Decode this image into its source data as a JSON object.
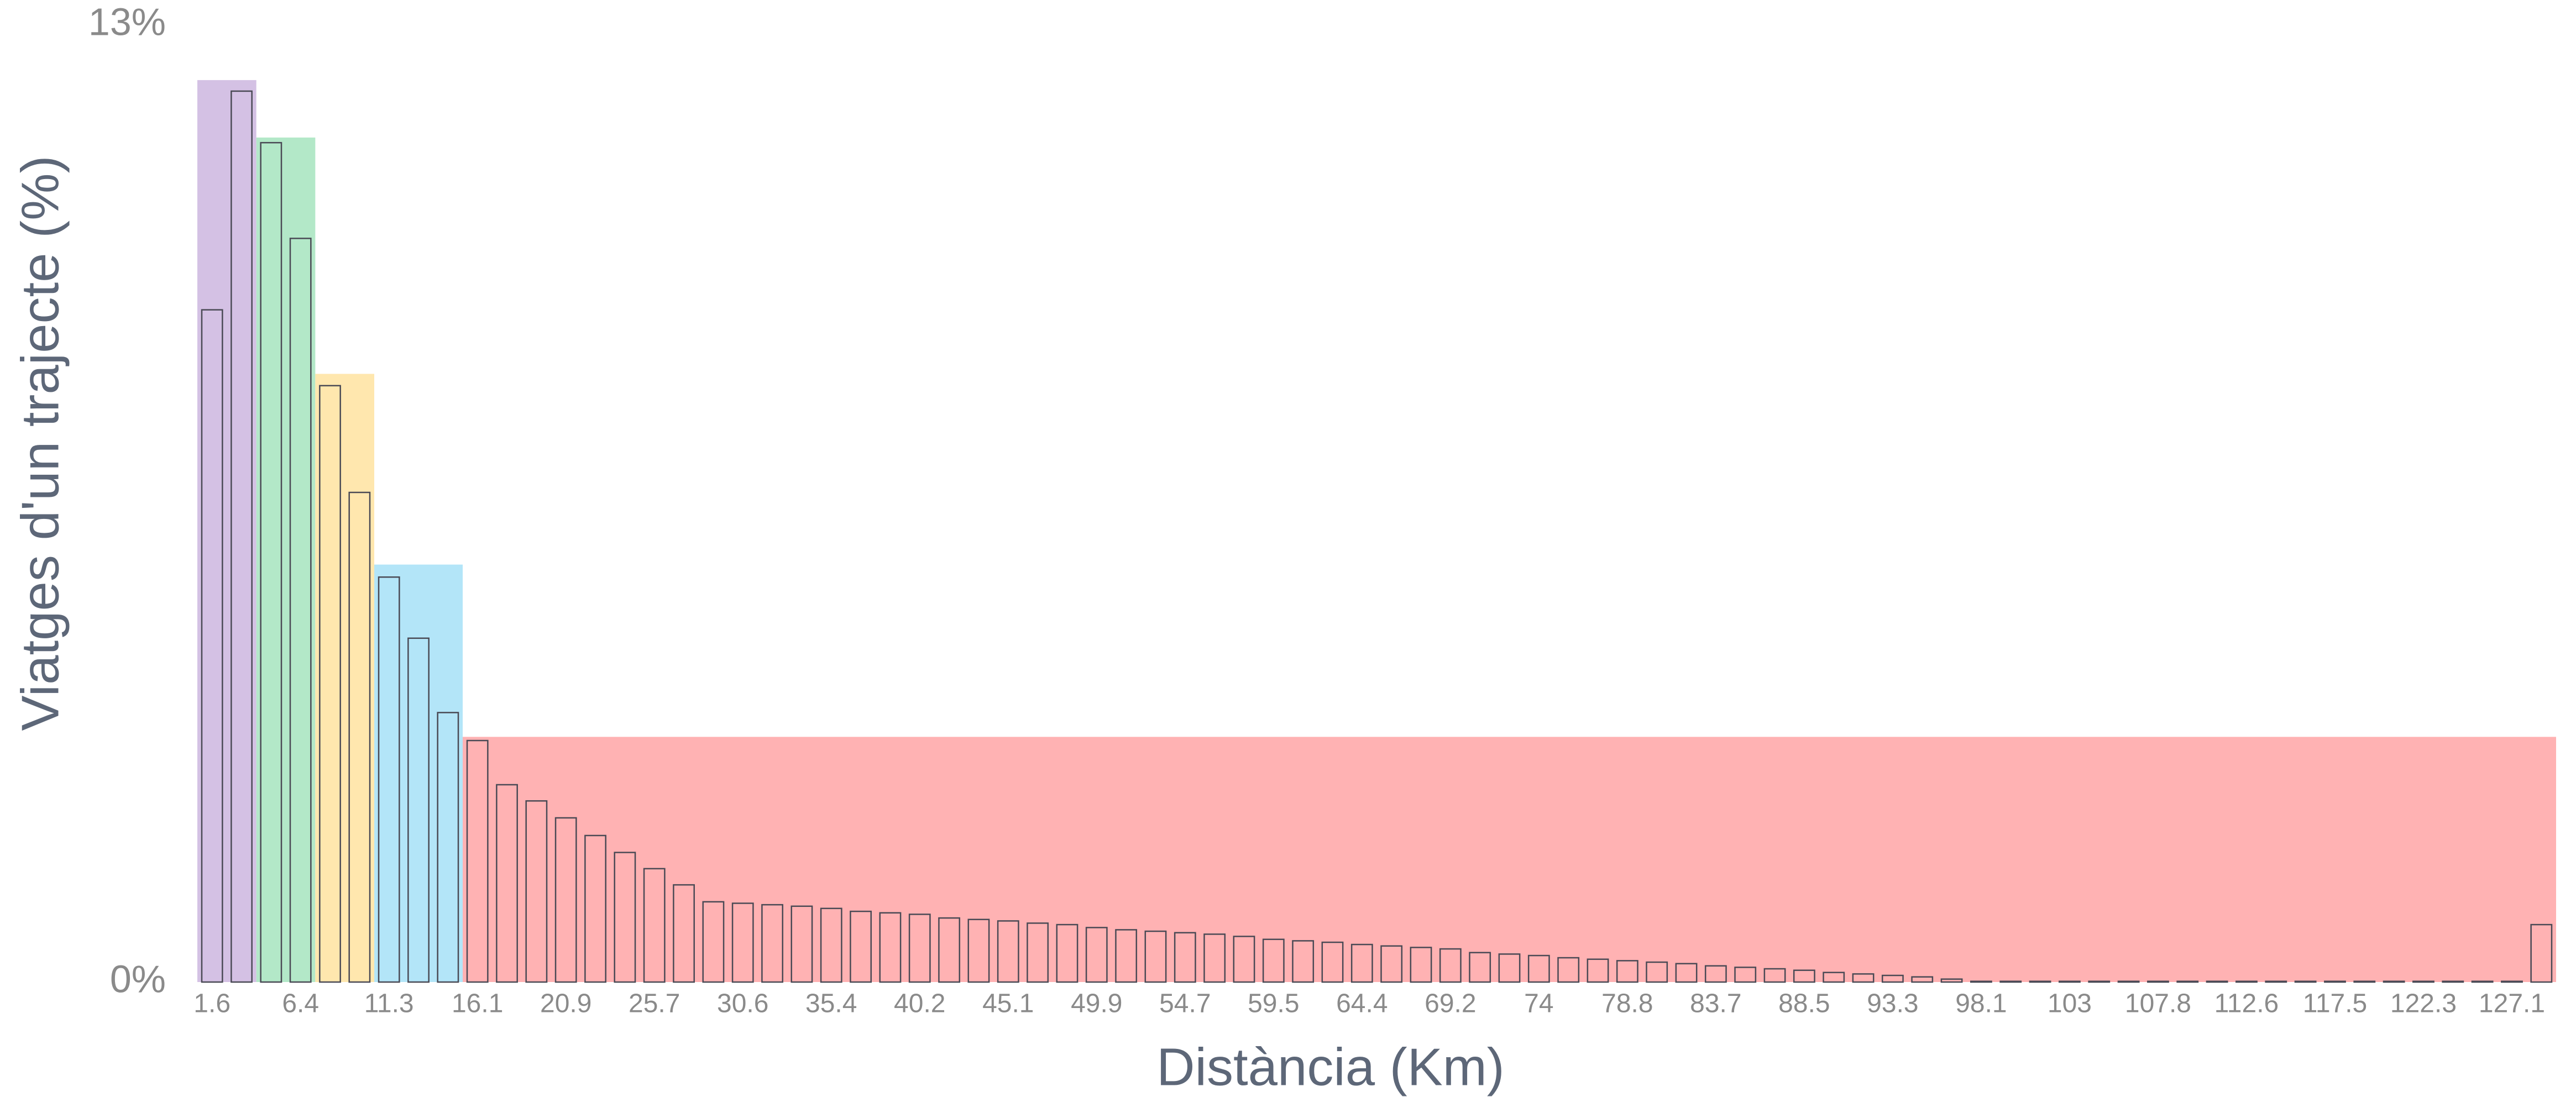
{
  "chart_data": {
    "type": "bar",
    "x_label": "Distància (Km)",
    "y_label": "Viatges d'un trajecte (%)",
    "categories": [
      "1.6",
      null,
      null,
      "6.4",
      null,
      null,
      "11.3",
      null,
      null,
      "16.1",
      null,
      null,
      "20.9",
      null,
      null,
      "25.7",
      null,
      null,
      "30.6",
      null,
      null,
      "35.4",
      null,
      null,
      "40.2",
      null,
      null,
      "45.1",
      null,
      null,
      "49.9",
      null,
      null,
      "54.7",
      null,
      null,
      "59.5",
      null,
      null,
      "64.4",
      null,
      null,
      "69.2",
      null,
      null,
      "74",
      null,
      null,
      "78.8",
      null,
      null,
      "83.7",
      null,
      null,
      "88.5",
      null,
      null,
      "93.3",
      null,
      null,
      "98.1",
      null,
      null,
      "103",
      null,
      null,
      "107.8",
      null,
      null,
      "112.6",
      null,
      null,
      "117.5",
      null,
      null,
      "122.3",
      null,
      null,
      "127.1",
      null
    ],
    "values": [
      9.13,
      12.1,
      11.4,
      10.1,
      8.1,
      6.65,
      5.5,
      4.67,
      3.66,
      3.28,
      2.68,
      2.46,
      2.23,
      1.99,
      1.76,
      1.54,
      1.32,
      1.09,
      1.07,
      1.05,
      1.03,
      1.0,
      0.96,
      0.94,
      0.92,
      0.87,
      0.85,
      0.83,
      0.8,
      0.78,
      0.74,
      0.71,
      0.69,
      0.67,
      0.65,
      0.62,
      0.58,
      0.56,
      0.54,
      0.51,
      0.49,
      0.47,
      0.45,
      0.4,
      0.38,
      0.36,
      0.33,
      0.31,
      0.29,
      0.27,
      0.25,
      0.22,
      0.2,
      0.18,
      0.16,
      0.13,
      0.11,
      0.09,
      0.07,
      0.04,
      0.01,
      0.01,
      0.01,
      0.01,
      0.01,
      0.01,
      0.01,
      0.01,
      0.01,
      0.01,
      0.01,
      0.01,
      0.01,
      0.01,
      0.01,
      0.01,
      0.01,
      0.01,
      0.01,
      0.78
    ],
    "bar_color": "#4a4a55",
    "bands": [
      {
        "color": "#d4c1e4",
        "value": 12.25,
        "span": [
          0,
          1
        ]
      },
      {
        "color": "#b3e8c8",
        "value": 11.47,
        "span": [
          2,
          3
        ]
      },
      {
        "color": "#ffe7ae",
        "value": 8.26,
        "span": [
          4,
          5
        ]
      },
      {
        "color": "#b3e5f8",
        "value": 5.67,
        "span": [
          6,
          8
        ]
      },
      {
        "color": "#ffb2b3",
        "value": 3.33,
        "span": [
          9,
          79
        ]
      }
    ],
    "ylim": [
      0,
      13
    ],
    "yticks": [
      {
        "value": 0,
        "label": "0%"
      },
      {
        "value": 13,
        "label": "13%"
      }
    ],
    "grid": false
  }
}
